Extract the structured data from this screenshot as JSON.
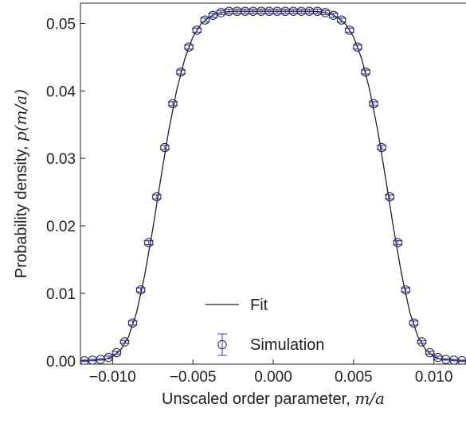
{
  "chart_data": {
    "type": "scatter",
    "xlabel": "Unscaled order parameter, ",
    "xlabel_math": "m/a",
    "ylabel": "Probability density, ",
    "ylabel_math": "p(m/a)",
    "xlim": [
      -0.012,
      0.012
    ],
    "ylim": [
      -0.0005,
      0.053
    ],
    "x_ticks": [
      -0.01,
      -0.005,
      0.0,
      0.005,
      0.01
    ],
    "x_tick_labels": [
      "−0.010",
      "−0.005",
      "0.000",
      "0.005",
      "0.010"
    ],
    "y_ticks": [
      0.0,
      0.01,
      0.02,
      0.03,
      0.04,
      0.05
    ],
    "y_tick_labels": [
      "0.00",
      "0.01",
      "0.02",
      "0.03",
      "0.04",
      "0.05"
    ],
    "grid": false,
    "legend_position": "lower center",
    "legend": [
      {
        "label": "Fit",
        "kind": "line"
      },
      {
        "label": "Simulation",
        "kind": "errorbar-marker"
      }
    ],
    "series": [
      {
        "name": "Fit",
        "kind": "line",
        "color": "#222222",
        "x": [
          -0.012,
          -0.0115,
          -0.011,
          -0.0105,
          -0.01,
          -0.0095,
          -0.009,
          -0.0085,
          -0.008,
          -0.0075,
          -0.007,
          -0.0065,
          -0.006,
          -0.0055,
          -0.005,
          -0.0045,
          -0.004,
          -0.0035,
          -0.003,
          -0.0025,
          -0.002,
          -0.0015,
          -0.001,
          -0.0005,
          0.0,
          0.0005,
          0.001,
          0.0015,
          0.002,
          0.0025,
          0.003,
          0.0035,
          0.004,
          0.0045,
          0.005,
          0.0055,
          0.006,
          0.0065,
          0.007,
          0.0075,
          0.008,
          0.0085,
          0.009,
          0.0095,
          0.01,
          0.0105,
          0.011,
          0.0115,
          0.012
        ],
        "y": [
          0.0,
          0.0,
          0.0001,
          0.0002,
          0.0006,
          0.0016,
          0.0036,
          0.0072,
          0.0127,
          0.0195,
          0.027,
          0.0342,
          0.0402,
          0.0448,
          0.048,
          0.0499,
          0.0509,
          0.0515,
          0.0517,
          0.0518,
          0.0518,
          0.0518,
          0.0518,
          0.0518,
          0.0518,
          0.0518,
          0.0518,
          0.0518,
          0.0518,
          0.0518,
          0.0517,
          0.0515,
          0.0509,
          0.0499,
          0.048,
          0.0448,
          0.0402,
          0.0342,
          0.027,
          0.0195,
          0.0127,
          0.0072,
          0.0036,
          0.0016,
          0.0006,
          0.0002,
          0.0001,
          0.0,
          0.0
        ]
      },
      {
        "name": "Simulation",
        "kind": "errorbar",
        "color": "#3a3ad0",
        "marker": "open-circle",
        "x": [
          -0.01175,
          -0.01125,
          -0.01075,
          -0.01025,
          -0.00975,
          -0.00925,
          -0.00875,
          -0.00825,
          -0.00775,
          -0.00725,
          -0.00675,
          -0.00625,
          -0.00575,
          -0.00525,
          -0.00475,
          -0.00425,
          -0.00375,
          -0.00325,
          -0.00275,
          -0.00225,
          -0.00175,
          -0.00125,
          -0.00075,
          -0.00025,
          0.00025,
          0.00075,
          0.00125,
          0.00175,
          0.00225,
          0.00275,
          0.00325,
          0.00375,
          0.00425,
          0.00475,
          0.00525,
          0.00575,
          0.00625,
          0.00675,
          0.00725,
          0.00775,
          0.00825,
          0.00875,
          0.00925,
          0.00975,
          0.01025,
          0.01075,
          0.01125,
          0.01175
        ],
        "y": [
          0.0,
          0.0001,
          0.0002,
          0.0005,
          0.0012,
          0.0028,
          0.0056,
          0.0105,
          0.0175,
          0.0243,
          0.0316,
          0.0381,
          0.0428,
          0.0465,
          0.049,
          0.0505,
          0.0512,
          0.0516,
          0.0518,
          0.0518,
          0.0518,
          0.0518,
          0.0518,
          0.0518,
          0.0518,
          0.0518,
          0.0518,
          0.0518,
          0.0518,
          0.0518,
          0.0516,
          0.0512,
          0.0505,
          0.049,
          0.0465,
          0.0428,
          0.0381,
          0.0316,
          0.0243,
          0.0175,
          0.0105,
          0.0056,
          0.0028,
          0.0012,
          0.0005,
          0.0002,
          0.0001,
          0.0
        ],
        "yerr": [
          0.0001,
          0.0001,
          0.0001,
          0.0002,
          0.0002,
          0.0002,
          0.0003,
          0.0003,
          0.0003,
          0.0003,
          0.0003,
          0.0003,
          0.0003,
          0.0003,
          0.0003,
          0.0003,
          0.0003,
          0.0003,
          0.0003,
          0.0003,
          0.0003,
          0.0003,
          0.0003,
          0.0003,
          0.0003,
          0.0003,
          0.0003,
          0.0003,
          0.0003,
          0.0003,
          0.0003,
          0.0003,
          0.0003,
          0.0003,
          0.0003,
          0.0003,
          0.0003,
          0.0003,
          0.0003,
          0.0003,
          0.0003,
          0.0003,
          0.0002,
          0.0002,
          0.0002,
          0.0001,
          0.0001,
          0.0001
        ]
      }
    ]
  }
}
